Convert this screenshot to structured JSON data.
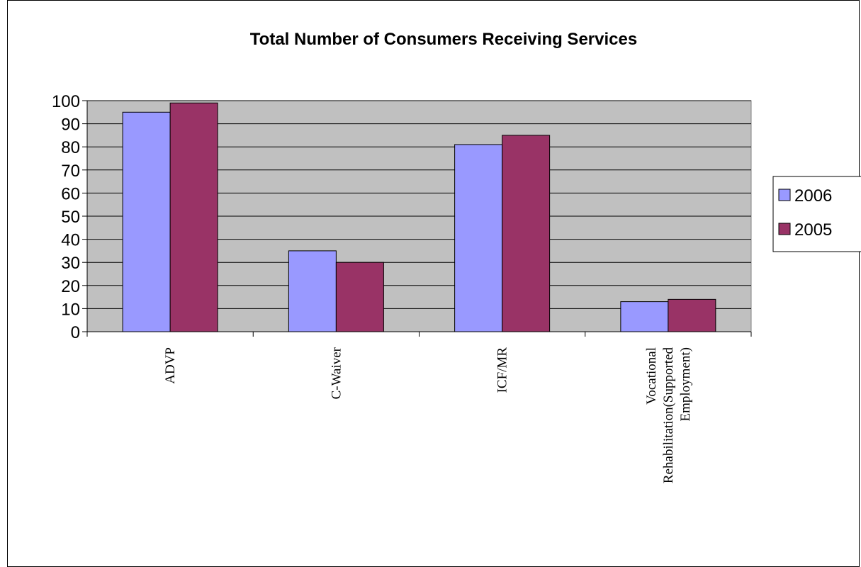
{
  "chart_data": {
    "type": "bar",
    "title": "Total Number of Consumers Receiving Services",
    "categories": [
      [
        "ADVP"
      ],
      [
        "C-Waiver"
      ],
      [
        "ICF/MR"
      ],
      [
        "Vocational",
        "Rehabilitation(Supported",
        "Employment)"
      ]
    ],
    "series": [
      {
        "name": "2006",
        "values": [
          95,
          35,
          81,
          13
        ],
        "color": "#9999ff"
      },
      {
        "name": "2005",
        "values": [
          99,
          30,
          85,
          14
        ],
        "color": "#993366"
      }
    ],
    "ylim": [
      0,
      100
    ],
    "yticks": [
      0,
      10,
      20,
      30,
      40,
      50,
      60,
      70,
      80,
      90,
      100
    ],
    "plot_background": "#c0c0c0",
    "grid": true,
    "legend_position": "right"
  }
}
